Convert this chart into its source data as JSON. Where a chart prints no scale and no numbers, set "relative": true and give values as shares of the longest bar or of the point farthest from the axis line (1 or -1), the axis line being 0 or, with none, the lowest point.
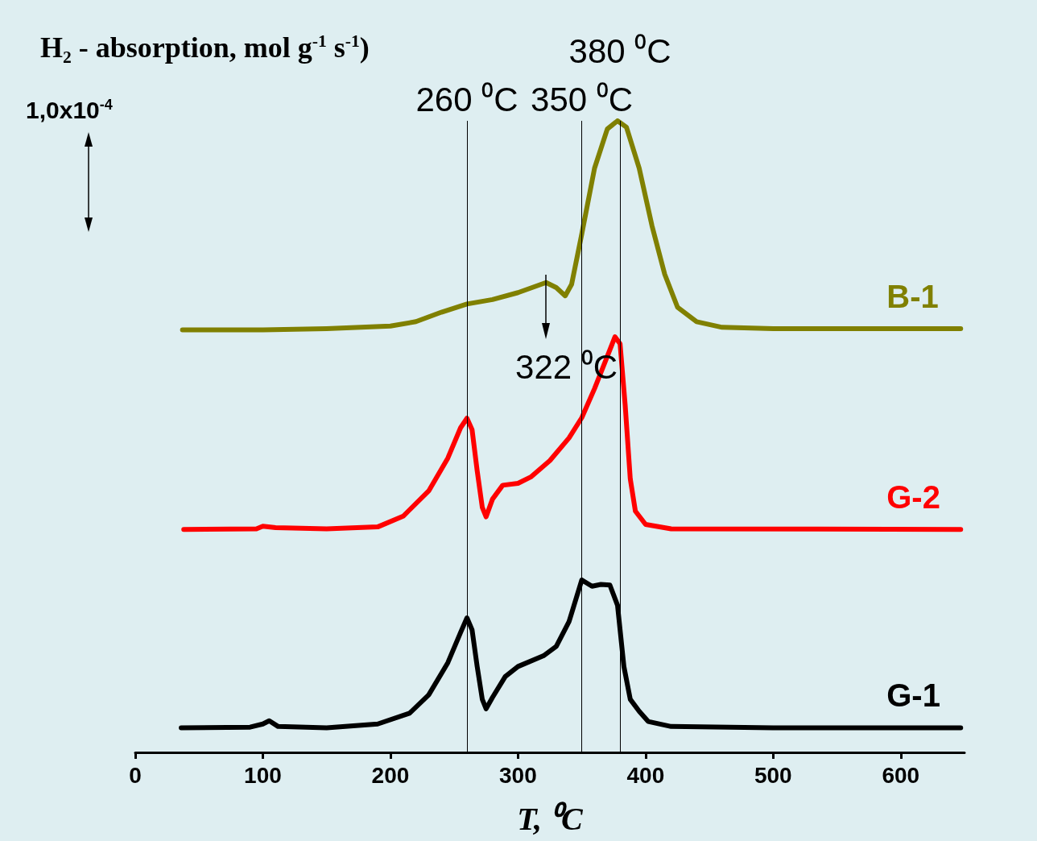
{
  "chart_data": {
    "type": "line",
    "relative": true,
    "ylabel": "H₂ - absorption, mol g$^{-1}$ s$^{-1}$)",
    "xlabel": "T, ⁰C",
    "xlim": [
      0,
      650
    ],
    "xticks": [
      0,
      100,
      200,
      300,
      400,
      500,
      600
    ],
    "legend": false,
    "grid": false,
    "marker": "none",
    "series": [
      {
        "name": "B-1",
        "color": "#808000",
        "x": [
          37,
          100,
          150,
          200,
          220,
          240,
          260,
          280,
          300,
          322,
          330,
          337,
          342,
          350,
          360,
          370,
          378,
          385,
          395,
          405,
          415,
          425,
          440,
          460,
          500,
          647
        ],
        "values": [
          0.669,
          0.669,
          0.671,
          0.675,
          0.682,
          0.697,
          0.71,
          0.717,
          0.728,
          0.744,
          0.736,
          0.723,
          0.741,
          0.821,
          0.925,
          0.987,
          1,
          0.99,
          0.925,
          0.834,
          0.757,
          0.705,
          0.682,
          0.673,
          0.671,
          0.671
        ]
      },
      {
        "name": "G-2",
        "color": "#ff0000",
        "x": [
          38,
          95,
          100,
          110,
          150,
          190,
          210,
          230,
          245,
          255,
          260,
          264,
          268,
          272,
          275,
          280,
          288,
          300,
          310,
          325,
          340,
          350,
          360,
          370,
          376,
          380,
          384,
          388,
          392,
          400,
          420,
          647
        ],
        "values": [
          0.353,
          0.354,
          0.358,
          0.356,
          0.354,
          0.357,
          0.374,
          0.414,
          0.466,
          0.514,
          0.529,
          0.511,
          0.446,
          0.388,
          0.373,
          0.401,
          0.423,
          0.426,
          0.436,
          0.462,
          0.498,
          0.53,
          0.576,
          0.627,
          0.658,
          0.647,
          0.55,
          0.433,
          0.382,
          0.361,
          0.354,
          0.353
        ]
      },
      {
        "name": "G-1",
        "color": "#000000",
        "x": [
          36,
          90,
          100,
          105,
          112,
          150,
          190,
          215,
          230,
          245,
          255,
          260,
          264,
          268,
          272,
          275,
          280,
          290,
          300,
          320,
          330,
          340,
          350,
          358,
          365,
          372,
          378,
          383,
          388,
          395,
          402,
          420,
          500,
          647
        ],
        "values": [
          0.039,
          0.04,
          0.045,
          0.05,
          0.041,
          0.039,
          0.045,
          0.062,
          0.091,
          0.142,
          0.19,
          0.213,
          0.194,
          0.136,
          0.084,
          0.069,
          0.087,
          0.12,
          0.136,
          0.153,
          0.168,
          0.207,
          0.273,
          0.263,
          0.266,
          0.265,
          0.233,
          0.136,
          0.084,
          0.065,
          0.049,
          0.041,
          0.039,
          0.039
        ]
      }
    ],
    "ref_lines": [
      {
        "axis": "x",
        "value": 260,
        "label": "260 ⁰C",
        "color": "#000000"
      },
      {
        "axis": "x",
        "value": 350,
        "label": "350 ⁰C",
        "color": "#000000"
      },
      {
        "axis": "x",
        "value": 380,
        "label": "380 ⁰C",
        "color": "#000000"
      }
    ],
    "annotations": [
      "1,0x10$^{-4}$",
      {
        "text": "322 ⁰C",
        "x": 322,
        "y": 0.744
      }
    ]
  }
}
